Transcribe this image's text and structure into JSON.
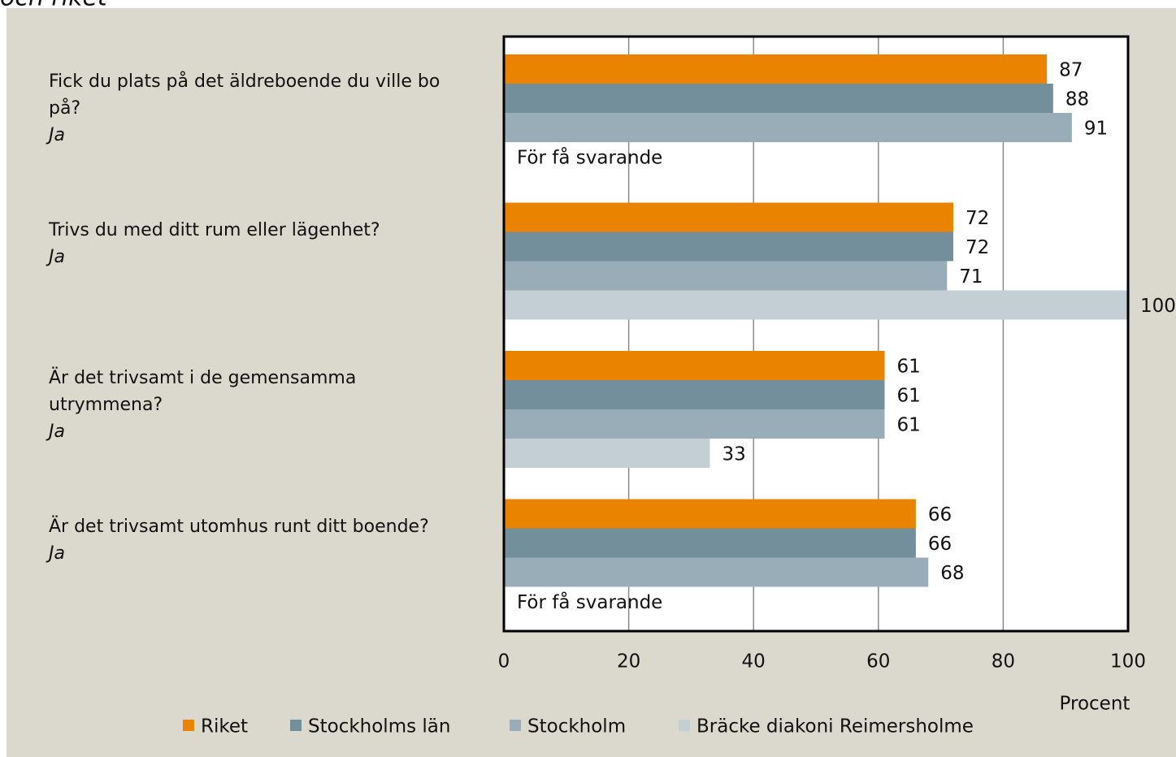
{
  "chart_data": {
    "type": "bar",
    "orientation": "horizontal",
    "title": "och riket",
    "categories": [
      "Fick du plats på det äldreboende du ville bo på?",
      "Trivs du med ditt rum eller lägenhet?",
      "Är det trivsamt i de gemensamma utrymmena?",
      "Är det trivsamt utomhus runt ditt boende?"
    ],
    "category_notes": [
      "Ja",
      "Ja",
      "Ja",
      "Ja"
    ],
    "series": [
      {
        "name": "Riket",
        "color": "#e98300",
        "values": [
          87,
          72,
          61,
          66
        ]
      },
      {
        "name": "Stockholms län",
        "color": "#748f9c",
        "values": [
          88,
          72,
          61,
          66
        ]
      },
      {
        "name": "Stockholm",
        "color": "#98adb8",
        "values": [
          91,
          71,
          61,
          68
        ]
      },
      {
        "name": "Bräcke diakoni Reimersholme",
        "color": "#c3ced5",
        "values": [
          null,
          100,
          33,
          null
        ],
        "missing_labels": [
          "För få svarande",
          null,
          null,
          "För få svarande"
        ]
      }
    ],
    "xlim": [
      0,
      100
    ],
    "xticks": [
      0,
      20,
      40,
      60,
      80,
      100
    ],
    "xlabel": "Procent",
    "grid": true,
    "legend": "bottom"
  }
}
